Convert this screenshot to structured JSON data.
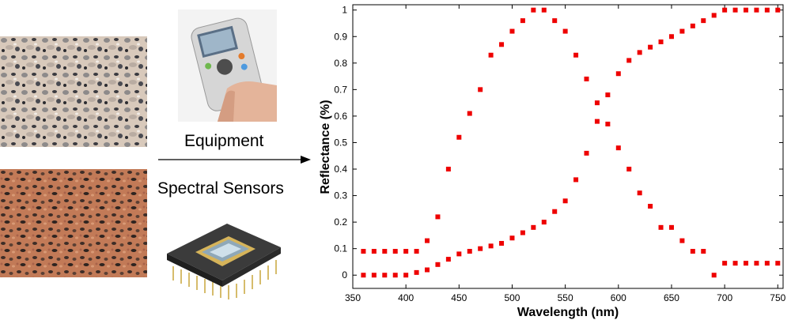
{
  "labels": {
    "equipment": "Equipment",
    "spectral_sensors": "Spectral Sensors"
  },
  "images": {
    "granite_top": "grey-granite-texture",
    "granite_bottom": "red-granite-texture",
    "device": "handheld-spectrophotometer",
    "sensor": "spectral-sensor-chip"
  },
  "colors": {
    "marker": "#ee0000"
  },
  "chart_data": {
    "type": "scatter",
    "title": "",
    "xlabel": "Wavelength (nm)",
    "ylabel": "Reflectance (%)",
    "xlim": [
      350,
      755
    ],
    "ylim": [
      -0.05,
      1.02
    ],
    "xticks": [
      "350",
      "400",
      "450",
      "500",
      "550",
      "600",
      "650",
      "700",
      "750"
    ],
    "yticks": [
      "0",
      "0.1",
      "0.2",
      "0.3",
      "0.4",
      "0.5",
      "0.6",
      "0.7",
      "0.8",
      "0.9",
      "1"
    ],
    "series": [
      {
        "x": [
          360,
          370,
          380,
          390,
          400,
          410,
          420,
          430,
          440,
          450,
          460,
          470,
          480,
          490,
          500,
          510,
          520,
          530,
          540,
          550,
          560,
          570,
          580,
          590,
          600,
          610,
          620,
          630,
          640,
          650,
          660,
          670,
          680,
          690,
          700,
          710,
          720,
          730,
          740,
          750
        ],
        "y": [
          0.09,
          0.09,
          0.09,
          0.09,
          0.09,
          0.09,
          0.13,
          0.22,
          0.4,
          0.52,
          0.61,
          0.7,
          0.83,
          0.87,
          0.92,
          0.96,
          1.0,
          1.0,
          0.96,
          0.92,
          0.83,
          0.74,
          0.58,
          0.57,
          0.48,
          0.4,
          0.31,
          0.26,
          0.18,
          0.18,
          0.13,
          0.09,
          0.09,
          0.0,
          0.045,
          0.045,
          0.045,
          0.045,
          0.045,
          0.045
        ]
      },
      {
        "x": [
          360,
          370,
          380,
          390,
          400,
          410,
          420,
          430,
          440,
          450,
          460,
          470,
          480,
          490,
          500,
          510,
          520,
          530,
          540,
          550,
          560,
          570,
          580,
          590,
          600,
          610,
          620,
          630,
          640,
          650,
          660,
          670,
          680,
          690,
          700,
          710,
          720,
          730,
          740,
          750
        ],
        "y": [
          0.0,
          0.0,
          0.0,
          0.0,
          0.0,
          0.01,
          0.02,
          0.04,
          0.06,
          0.08,
          0.09,
          0.1,
          0.11,
          0.12,
          0.14,
          0.16,
          0.18,
          0.2,
          0.24,
          0.28,
          0.36,
          0.46,
          0.65,
          0.68,
          0.76,
          0.81,
          0.84,
          0.86,
          0.88,
          0.9,
          0.92,
          0.94,
          0.96,
          0.98,
          1.0,
          1.0,
          1.0,
          1.0,
          1.0,
          1.0
        ]
      }
    ]
  }
}
